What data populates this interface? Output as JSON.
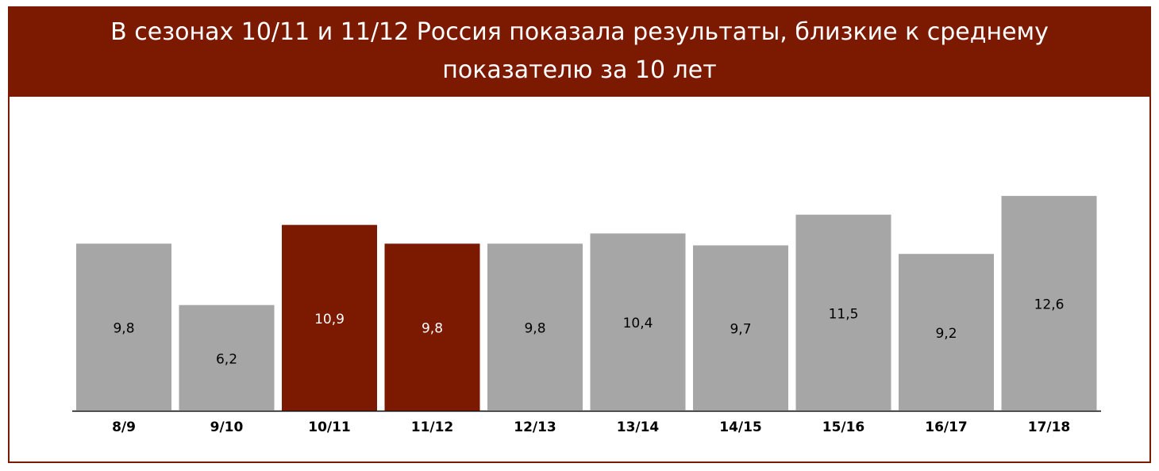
{
  "chart_data": {
    "type": "bar",
    "title": "В сезонах 10/11 и 11/12 Россия показала результаты, близкие к среднему показателю за 10 лет",
    "categories": [
      "8/9",
      "9/10",
      "10/11",
      "11/12",
      "12/13",
      "13/14",
      "14/15",
      "15/16",
      "16/17",
      "17/18"
    ],
    "values": [
      9.8,
      6.2,
      10.9,
      9.8,
      9.8,
      10.4,
      9.7,
      11.5,
      9.2,
      12.6
    ],
    "value_labels": [
      "9,8",
      "6,2",
      "10,9",
      "9,8",
      "9,8",
      "10,4",
      "9,7",
      "11,5",
      "9,2",
      "12,6"
    ],
    "colors": [
      "#a6a6a6",
      "#a6a6a6",
      "#7b1a00",
      "#7b1a00",
      "#a6a6a6",
      "#a6a6a6",
      "#a6a6a6",
      "#a6a6a6",
      "#a6a6a6",
      "#a6a6a6"
    ]
  }
}
